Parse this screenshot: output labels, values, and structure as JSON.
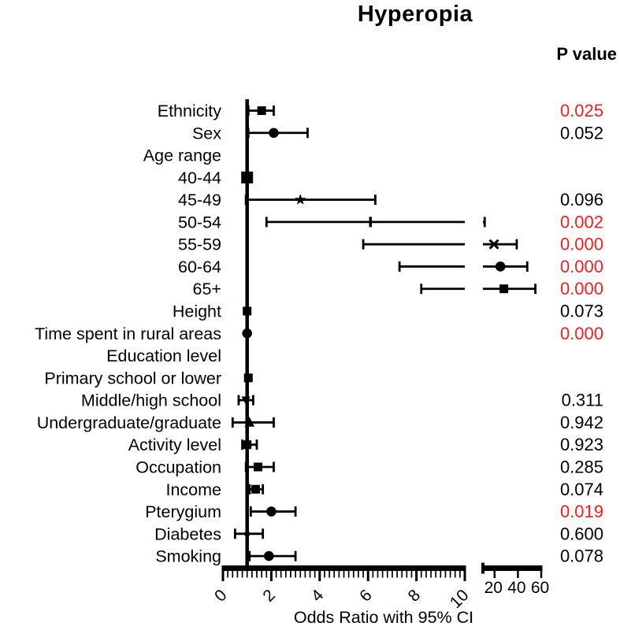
{
  "colors": {
    "significant_red": "#ED2024",
    "default_text": "#000000"
  },
  "chart_data": {
    "type": "forest",
    "title": "Hyperopia",
    "p_value_header": "P value",
    "xlabel": "Odds Ratio with 95% CI",
    "x_axis": {
      "segment1": {
        "min": 0,
        "max": 10,
        "major_ticks": [
          0,
          2,
          4,
          6,
          8,
          10
        ],
        "minor_tick_step": 0.2,
        "tick_label_angle_deg": -45
      },
      "segment2": {
        "min": 10,
        "max": 60,
        "ticks": [
          20,
          40,
          60
        ]
      },
      "axis_break_after": 10,
      "reference_line_at": 1
    },
    "grid": "off",
    "legend": "none",
    "rows": [
      {
        "label": "Ethnicity",
        "or": 1.6,
        "ci": [
          1.05,
          2.1
        ],
        "marker": "square",
        "p": "0.025",
        "sig": true
      },
      {
        "label": "Sex",
        "or": 2.1,
        "ci": [
          1.05,
          3.5
        ],
        "marker": "circle",
        "p": "0.052",
        "sig": false
      },
      {
        "label": "Age range",
        "or": null,
        "ci": null,
        "marker": null,
        "p": null,
        "sig": false
      },
      {
        "label": "40-44",
        "or": 1.0,
        "ci": null,
        "marker": "square-large",
        "p": null,
        "sig": false
      },
      {
        "label": "45-49",
        "or": 3.2,
        "ci": [
          0.95,
          6.3
        ],
        "marker": "star",
        "p": "0.096",
        "sig": false
      },
      {
        "label": "50-54",
        "or": 6.1,
        "ci": [
          1.8,
          11.5
        ],
        "marker": "vline",
        "p": "0.002",
        "sig": true
      },
      {
        "label": "55-59",
        "or": 19.5,
        "ci": [
          5.8,
          39.0
        ],
        "marker": "cross",
        "p": "0.000",
        "sig": true
      },
      {
        "label": "60-64",
        "or": 25.0,
        "ci": [
          7.3,
          48.0
        ],
        "marker": "circle",
        "p": "0.000",
        "sig": true
      },
      {
        "label": "65+",
        "or": 28.0,
        "ci": [
          8.2,
          55.0
        ],
        "marker": "square",
        "p": "0.000",
        "sig": true
      },
      {
        "label": "Height",
        "or": 1.0,
        "ci": null,
        "marker": "square",
        "p": "0.073",
        "sig": false
      },
      {
        "label": "Time spent in rural areas",
        "or": 1.0,
        "ci": null,
        "marker": "circle",
        "p": "0.000",
        "sig": true
      },
      {
        "label": "Education level",
        "or": null,
        "ci": null,
        "marker": null,
        "p": null,
        "sig": false
      },
      {
        "label": "Primary school or lower",
        "or": 1.05,
        "ci": null,
        "marker": "square",
        "p": null,
        "sig": false
      },
      {
        "label": "Middle/high school",
        "or": 0.95,
        "ci": [
          0.65,
          1.25
        ],
        "marker": "triangle-down",
        "p": "0.311",
        "sig": false
      },
      {
        "label": "Undergraduate/graduate",
        "or": 1.1,
        "ci": [
          0.4,
          2.1
        ],
        "marker": "triangle-up",
        "p": "0.942",
        "sig": false
      },
      {
        "label": "Activity level",
        "or": 1.0,
        "ci": [
          0.8,
          1.4
        ],
        "marker": "square",
        "p": "0.923",
        "sig": false
      },
      {
        "label": "Occupation",
        "or": 1.45,
        "ci": [
          0.95,
          2.1
        ],
        "marker": "square",
        "p": "0.285",
        "sig": false
      },
      {
        "label": "Income",
        "or": 1.35,
        "ci": [
          1.1,
          1.65
        ],
        "marker": "square",
        "p": "0.074",
        "sig": false
      },
      {
        "label": "Pterygium",
        "or": 2.0,
        "ci": [
          1.15,
          3.0
        ],
        "marker": "circle",
        "p": "0.019",
        "sig": true
      },
      {
        "label": "Diabetes",
        "or": 1.0,
        "ci": [
          0.5,
          1.65
        ],
        "marker": "diamond-small",
        "p": "0.600",
        "sig": false
      },
      {
        "label": "Smoking",
        "or": 1.9,
        "ci": [
          1.1,
          3.0
        ],
        "marker": "circle",
        "p": "0.078",
        "sig": false
      }
    ]
  }
}
